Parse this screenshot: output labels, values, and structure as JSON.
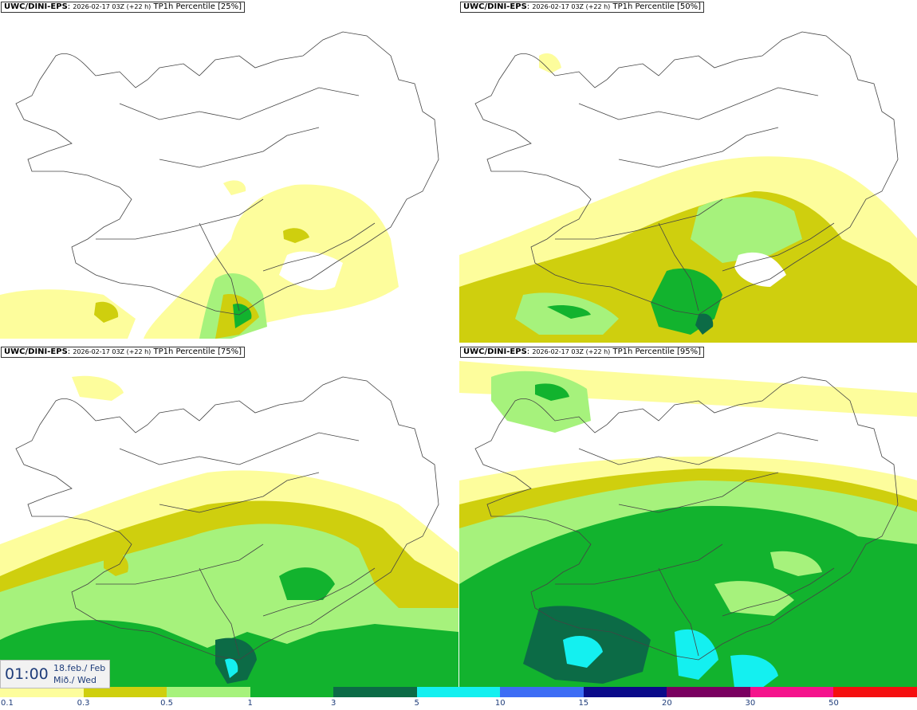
{
  "panels": [
    {
      "model": "UWC/DINI-EPS",
      "run": "2026-02-17 03Z (+22 h)",
      "product": "TP1h Percentile [25%]"
    },
    {
      "model": "UWC/DINI-EPS",
      "run": "2026-02-17 03Z (+22 h)",
      "product": "TP1h Percentile [50%]"
    },
    {
      "model": "UWC/DINI-EPS",
      "run": "2026-02-17 03Z (+22 h)",
      "product": "TP1h Percentile [75%]"
    },
    {
      "model": "UWC/DINI-EPS",
      "run": "2026-02-17 03Z (+22 h)",
      "product": "TP1h Percentile [95%]"
    }
  ],
  "valid_time": {
    "clock": "01:00",
    "date_line": "18.feb./ Feb",
    "day_line": "Mið./ Wed"
  },
  "colorbar": {
    "ticks": [
      "0.1",
      "0.3",
      "0.5",
      "1",
      "3",
      "5",
      "10",
      "15",
      "20",
      "30",
      "50"
    ],
    "colors": [
      "#fdfd9c",
      "#cfcf0e",
      "#a6f27c",
      "#12b32e",
      "#0c6b46",
      "#14f0f0",
      "#3d6df5",
      "#0b0b8a",
      "#7a0060",
      "#f5138c",
      "#f51010"
    ]
  }
}
